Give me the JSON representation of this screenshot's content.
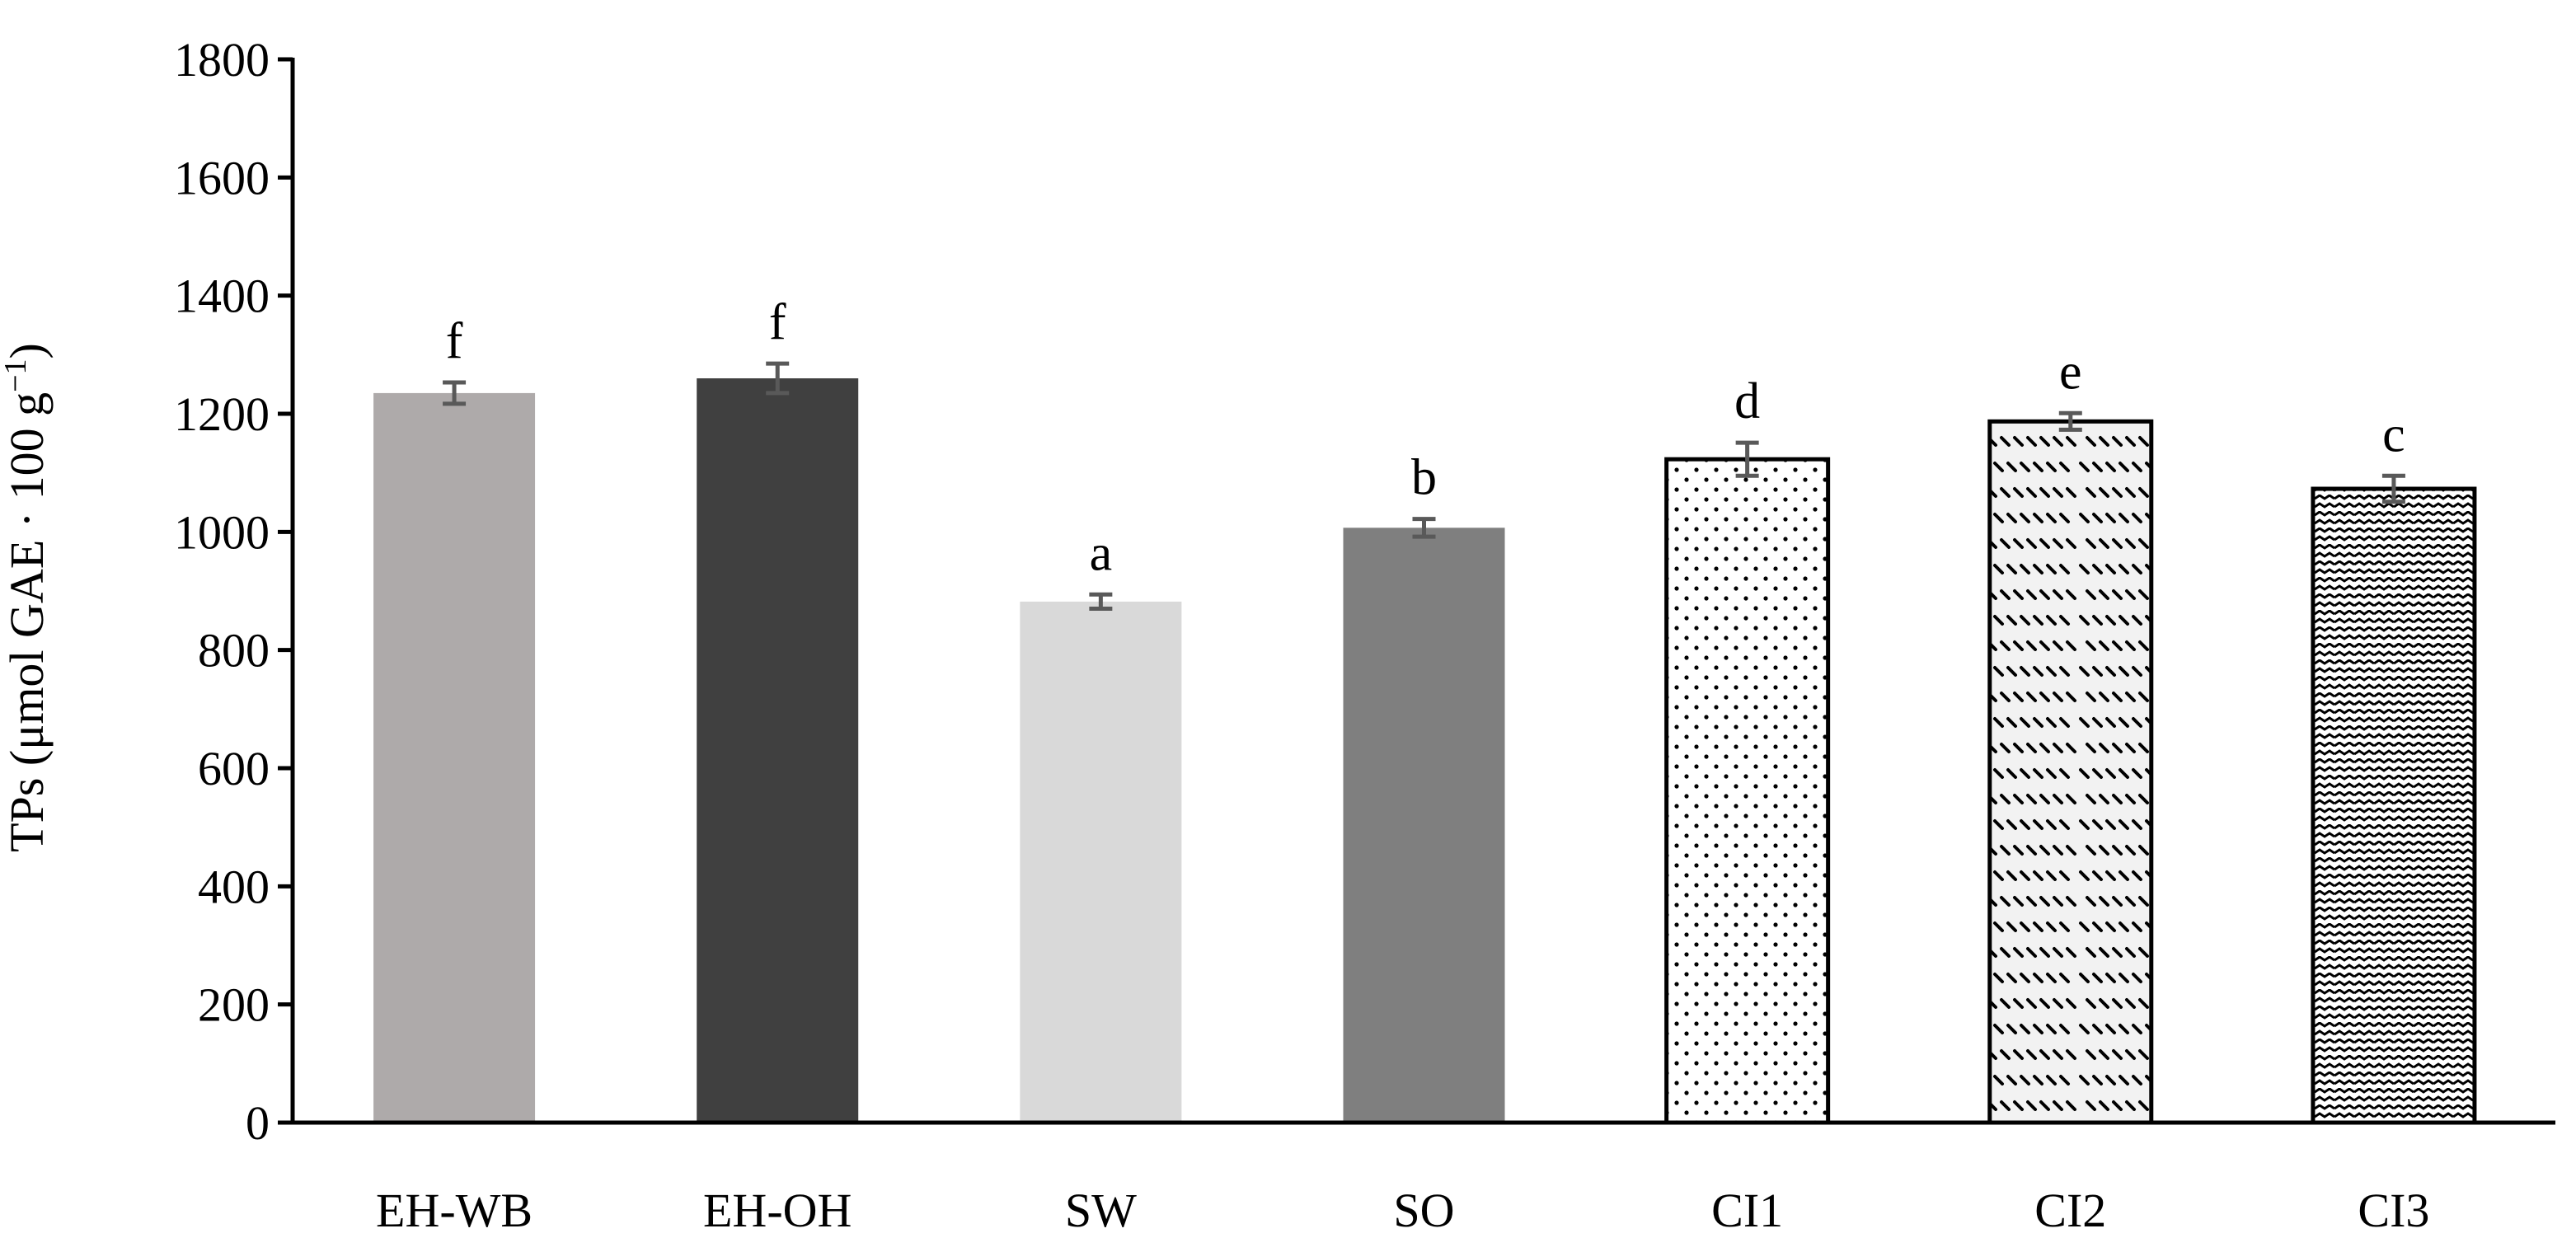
{
  "chart_data": {
    "type": "bar",
    "title": "",
    "xlabel": "",
    "ylabel": {
      "prefix": "TPs (μmol GAE · 100 g",
      "superscript": "−1",
      "suffix": ")"
    },
    "ylim": [
      0,
      1800
    ],
    "yticks": [
      0,
      200,
      400,
      600,
      800,
      1000,
      1200,
      1400,
      1600,
      1800
    ],
    "grid": false,
    "legend": "none",
    "categories": [
      "EH-WB",
      "EH-OH",
      "SW",
      "SO",
      "CI1",
      "CI2",
      "CI3"
    ],
    "values": [
      1235,
      1260,
      882,
      1007,
      1123,
      1187,
      1073
    ],
    "errors": [
      18,
      25,
      12,
      15,
      28,
      14,
      22
    ],
    "significance": [
      "f",
      "f",
      "a",
      "b",
      "d",
      "e",
      "c"
    ],
    "fills": [
      {
        "kind": "solid",
        "color": "#aeaaaa"
      },
      {
        "kind": "solid",
        "color": "#404040"
      },
      {
        "kind": "solid",
        "color": "#d9d9d9"
      },
      {
        "kind": "solid",
        "color": "#7f7f7f"
      },
      {
        "kind": "dots",
        "color": "#000000",
        "background": "#ffffff"
      },
      {
        "kind": "dashes",
        "color": "#000000",
        "background": "#f2f2f2"
      },
      {
        "kind": "waves",
        "color": "#000000",
        "background": "#ffffff"
      }
    ],
    "colors": {
      "axis": "#000000",
      "error_bar": "#595959",
      "outline": "#000000"
    }
  }
}
